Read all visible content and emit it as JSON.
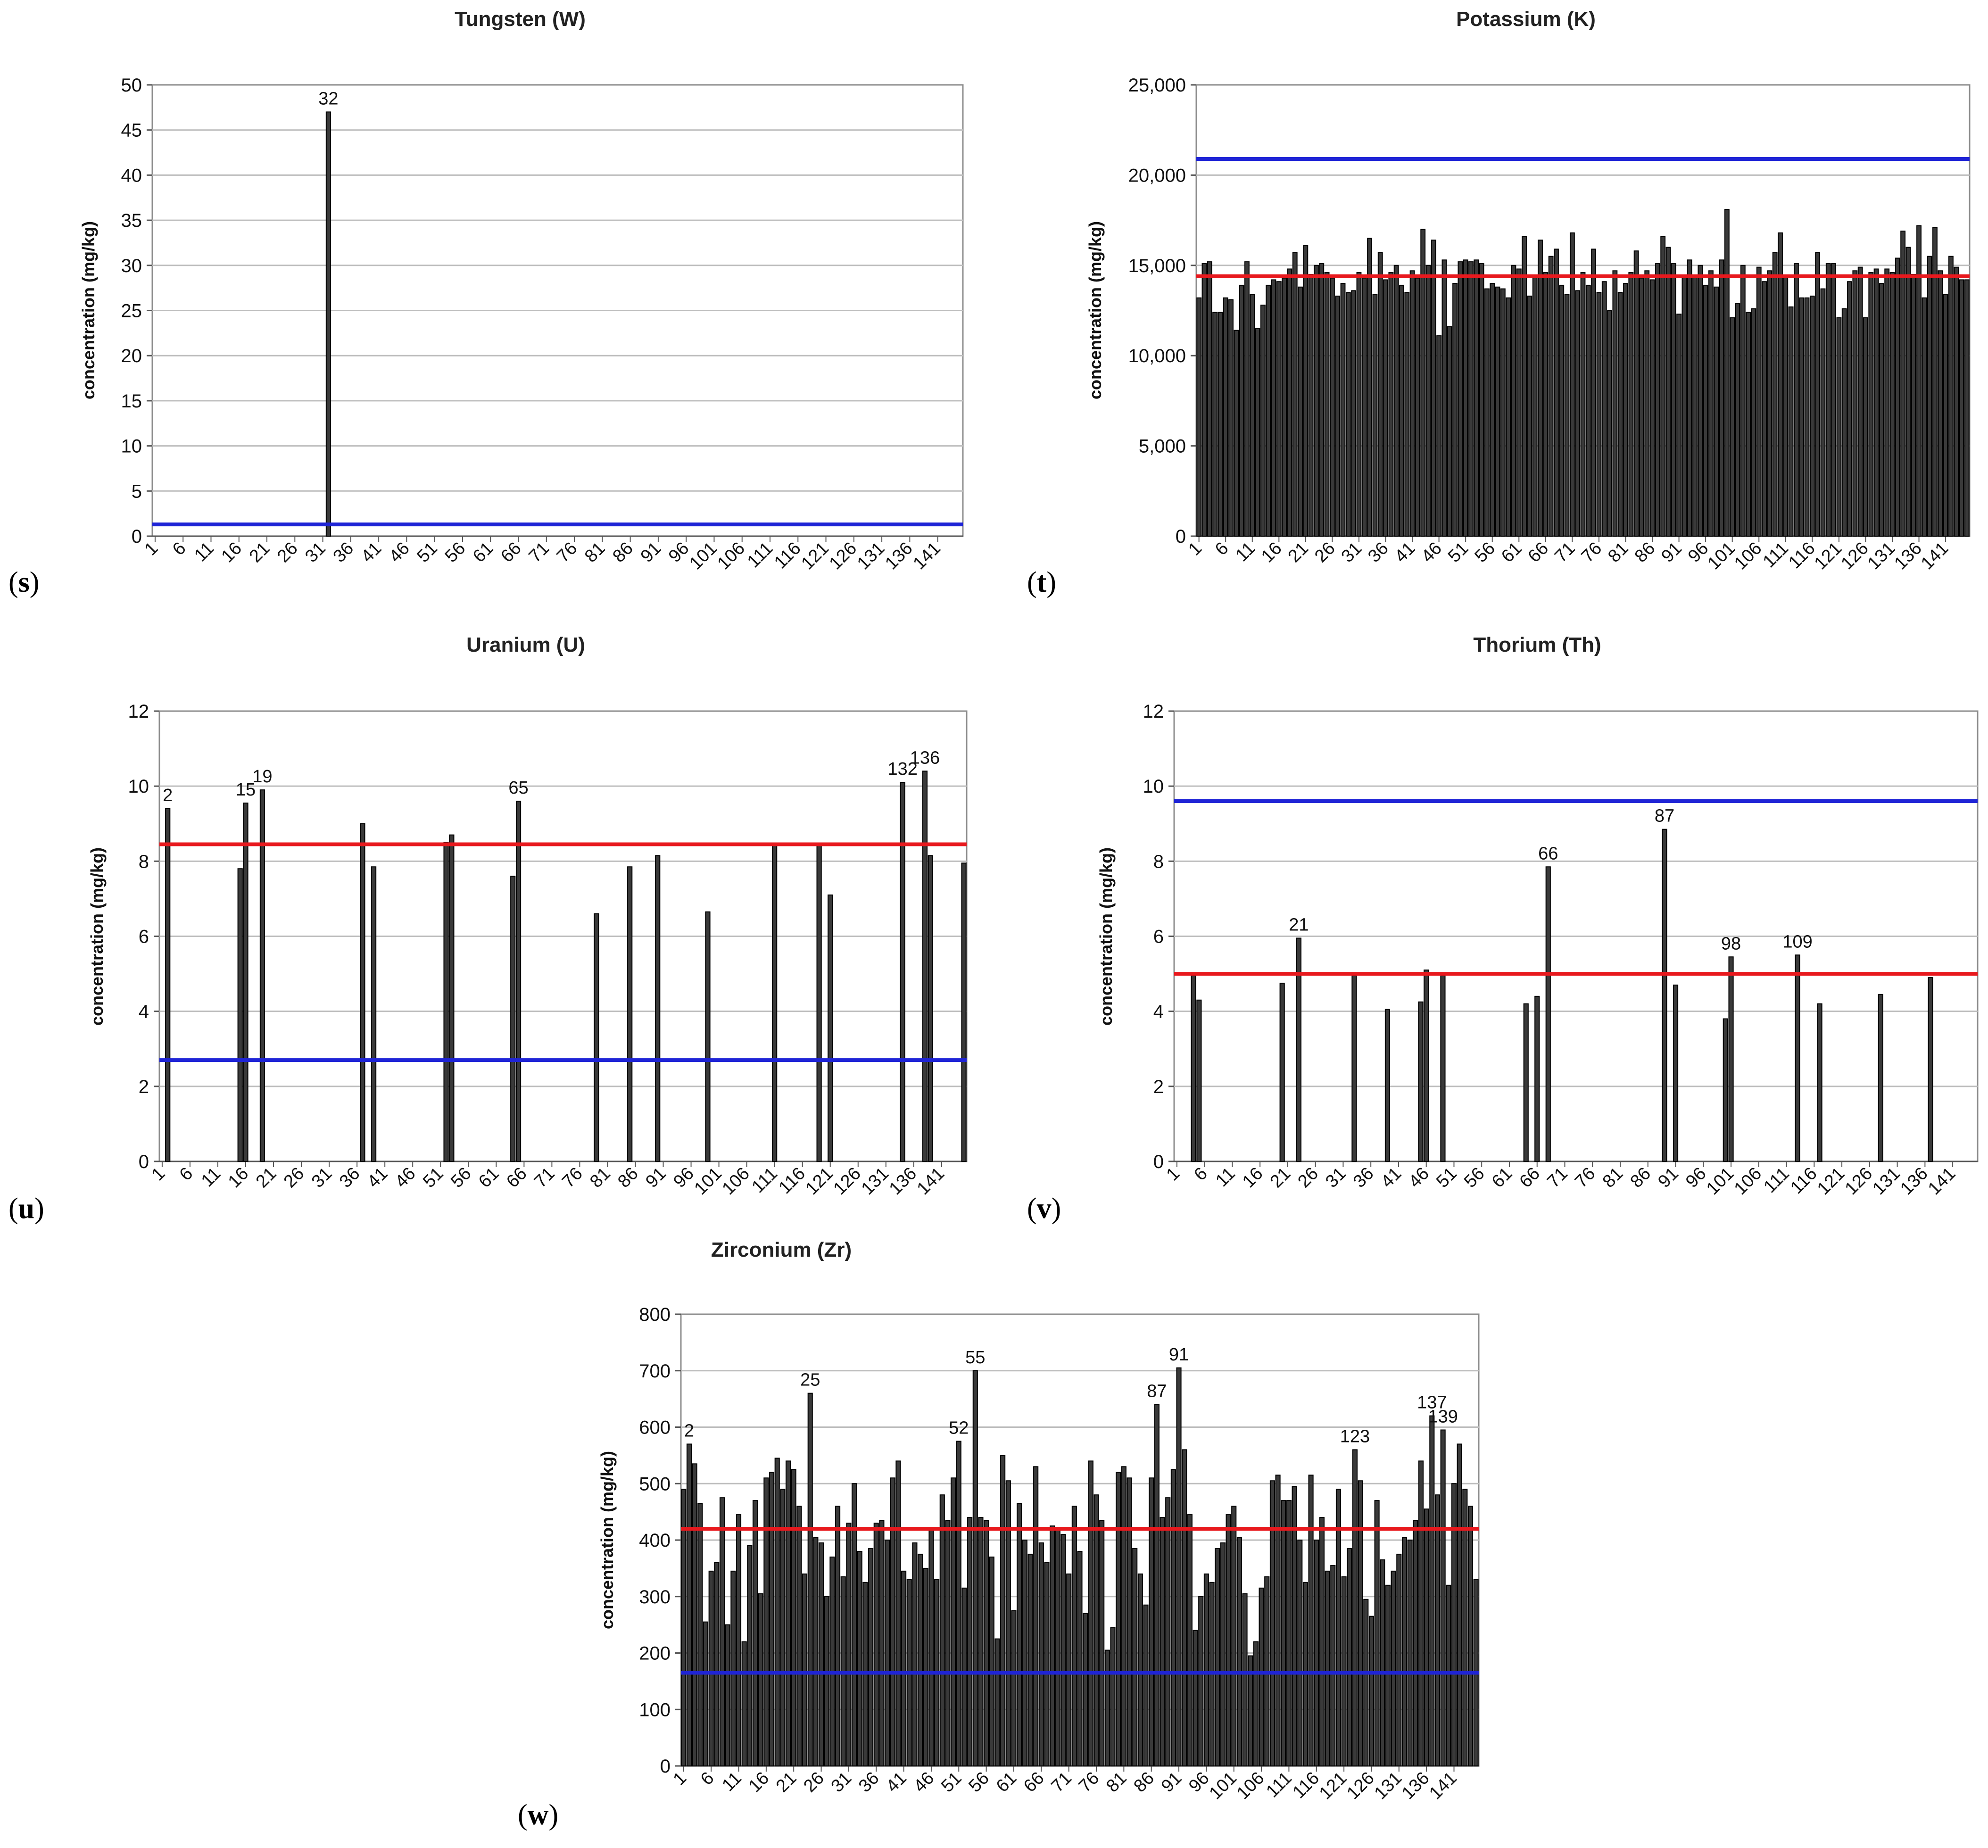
{
  "colors": {
    "bar_fill": "#3a3a3a",
    "bar_stroke": "#000000",
    "grid": "#bdbdbd",
    "red_line": "#e8191e",
    "blue_line": "#1f24d6"
  },
  "chart_data": [
    {
      "id": "s",
      "type": "bar",
      "title": "Tungsten (W)",
      "panel_label": "s",
      "ylabel": "concentration (mg/kg)",
      "ylim": [
        0,
        50
      ],
      "yticks": [
        0,
        5,
        10,
        15,
        20,
        25,
        30,
        35,
        40,
        45,
        50
      ],
      "ytick_labels": [
        "0",
        "5",
        "10",
        "15",
        "20",
        "25",
        "30",
        "35",
        "40",
        "45",
        "50"
      ],
      "n_samples": 145,
      "xtick_labels": [
        "1",
        "6",
        "11",
        "16",
        "21",
        "26",
        "31",
        "36",
        "41",
        "46",
        "51",
        "56",
        "61",
        "66",
        "71",
        "76",
        "81",
        "86",
        "91",
        "96",
        "101",
        "106",
        "111",
        "116",
        "121",
        "126",
        "131",
        "136",
        "141"
      ],
      "values": {
        "32": 47
      },
      "reference_lines": [
        {
          "color": "blue",
          "value": 1.3
        }
      ],
      "annotations": [
        {
          "label": "32",
          "sample": 32
        }
      ]
    },
    {
      "id": "t",
      "type": "bar",
      "title": "Potassium (K)",
      "panel_label": "t",
      "ylabel": "concentration (mg/kg)",
      "ylim": [
        0,
        25000
      ],
      "yticks": [
        0,
        5000,
        10000,
        15000,
        20000,
        25000
      ],
      "ytick_labels": [
        "0",
        "5,000",
        "10,000",
        "15,000",
        "20,000",
        "25,000"
      ],
      "n_samples": 145,
      "xtick_labels": [
        "1",
        "6",
        "11",
        "16",
        "21",
        "26",
        "31",
        "36",
        "41",
        "46",
        "51",
        "56",
        "61",
        "66",
        "71",
        "76",
        "81",
        "86",
        "91",
        "96",
        "101",
        "106",
        "111",
        "116",
        "121",
        "126",
        "131",
        "136",
        "141"
      ],
      "values_list": [
        13200,
        15100,
        15200,
        12400,
        12400,
        13200,
        13100,
        11400,
        13900,
        15200,
        13400,
        11500,
        12800,
        13900,
        14200,
        14100,
        14300,
        14800,
        15700,
        13800,
        16100,
        14500,
        15000,
        15100,
        14600,
        14300,
        13300,
        14000,
        13500,
        13600,
        14600,
        14300,
        16500,
        13400,
        15700,
        14200,
        14600,
        15000,
        13900,
        13500,
        14700,
        14300,
        17000,
        15000,
        16400,
        11100,
        15300,
        11600,
        14000,
        15200,
        15300,
        15200,
        15300,
        15100,
        13700,
        14000,
        13800,
        13700,
        13200,
        15000,
        14800,
        16600,
        13300,
        14400,
        16400,
        14600,
        15500,
        15900,
        13900,
        13400,
        16800,
        13600,
        14600,
        13900,
        15900,
        13500,
        14100,
        12500,
        14700,
        13500,
        14000,
        14600,
        15800,
        14300,
        14700,
        14200,
        15100,
        16600,
        16000,
        15100,
        12300,
        14400,
        15300,
        14400,
        15000,
        13900,
        14700,
        13800,
        15300,
        18100,
        12100,
        12900,
        15000,
        12400,
        12600,
        14900,
        14100,
        14700,
        15700,
        16800,
        14400,
        12700,
        15100,
        13200,
        13200,
        13300,
        15700,
        13700,
        15100,
        15100,
        12100,
        12600,
        14100,
        14700,
        14900,
        12100,
        14600,
        14800,
        14000,
        14800,
        14600,
        15400,
        16900,
        16000,
        14500,
        17200,
        13200,
        15500,
        17100,
        14700,
        13400,
        15500,
        14900,
        14200,
        14200
      ],
      "reference_lines": [
        {
          "color": "red",
          "value": 14400
        },
        {
          "color": "blue",
          "value": 20900
        }
      ],
      "annotations": []
    },
    {
      "id": "u",
      "type": "bar",
      "title": "Uranium (U)",
      "panel_label": "u",
      "ylabel": "concentration (mg/kg)",
      "ylim": [
        0,
        12
      ],
      "yticks": [
        0,
        2,
        4,
        6,
        8,
        10,
        12
      ],
      "ytick_labels": [
        "0",
        "2",
        "4",
        "6",
        "8",
        "10",
        "12"
      ],
      "n_samples": 145,
      "xtick_labels": [
        "1",
        "6",
        "11",
        "16",
        "21",
        "26",
        "31",
        "36",
        "41",
        "46",
        "51",
        "56",
        "61",
        "66",
        "71",
        "76",
        "81",
        "86",
        "91",
        "96",
        "101",
        "106",
        "111",
        "116",
        "121",
        "126",
        "131",
        "136",
        "141"
      ],
      "values": {
        "2": 9.4,
        "15": 7.8,
        "16": 9.55,
        "19": 9.9,
        "37": 9.0,
        "39": 7.85,
        "52": 8.5,
        "53": 8.7,
        "64": 7.6,
        "65": 9.6,
        "79": 6.6,
        "85": 7.85,
        "90": 8.15,
        "99": 6.65,
        "111": 8.45,
        "119": 8.45,
        "121": 7.1,
        "134": 10.1,
        "138": 10.4,
        "139": 8.15,
        "145": 7.95
      },
      "reference_lines": [
        {
          "color": "red",
          "value": 8.45
        },
        {
          "color": "blue",
          "value": 2.7
        }
      ],
      "annotations": [
        {
          "label": "2",
          "sample": 2
        },
        {
          "label": "15",
          "sample": 16
        },
        {
          "label": "19",
          "sample": 19
        },
        {
          "label": "65",
          "sample": 65
        },
        {
          "label": "132",
          "sample": 134
        },
        {
          "label": "136",
          "sample": 138
        }
      ]
    },
    {
      "id": "v",
      "type": "bar",
      "title": "Thorium (Th)",
      "panel_label": "v",
      "ylabel": "concentration (mg/kg)",
      "ylim": [
        0,
        12
      ],
      "yticks": [
        0,
        2,
        4,
        6,
        8,
        10,
        12
      ],
      "ytick_labels": [
        "0",
        "2",
        "4",
        "6",
        "8",
        "10",
        "12"
      ],
      "n_samples": 145,
      "xtick_labels": [
        "1",
        "6",
        "11",
        "16",
        "21",
        "26",
        "31",
        "36",
        "41",
        "46",
        "51",
        "56",
        "61",
        "66",
        "71",
        "76",
        "81",
        "86",
        "91",
        "96",
        "101",
        "106",
        "111",
        "116",
        "121",
        "126",
        "131",
        "136",
        "141"
      ],
      "values": {
        "4": 4.95,
        "5": 4.3,
        "20": 4.75,
        "23": 5.95,
        "33": 4.95,
        "39": 4.05,
        "45": 4.25,
        "46": 5.1,
        "49": 4.95,
        "64": 4.2,
        "66": 4.4,
        "68": 7.85,
        "89": 8.85,
        "91": 4.7,
        "100": 3.8,
        "101": 5.45,
        "113": 5.5,
        "117": 4.2,
        "128": 4.45,
        "137": 4.9
      },
      "reference_lines": [
        {
          "color": "red",
          "value": 5.0
        },
        {
          "color": "blue",
          "value": 9.6
        }
      ],
      "annotations": [
        {
          "label": "21",
          "sample": 23
        },
        {
          "label": "66",
          "sample": 68
        },
        {
          "label": "87",
          "sample": 89
        },
        {
          "label": "98",
          "sample": 101
        },
        {
          "label": "109",
          "sample": 113
        }
      ]
    },
    {
      "id": "w",
      "type": "bar",
      "title": "Zirconium (Zr)",
      "panel_label": "w",
      "ylabel": "concentration (mg/kg)",
      "ylim": [
        0,
        800
      ],
      "yticks": [
        0,
        100,
        200,
        300,
        400,
        500,
        600,
        700,
        800
      ],
      "ytick_labels": [
        "0",
        "100",
        "200",
        "300",
        "400",
        "500",
        "600",
        "700",
        "800"
      ],
      "n_samples": 145,
      "xtick_labels": [
        "1",
        "6",
        "11",
        "16",
        "21",
        "26",
        "31",
        "36",
        "41",
        "46",
        "51",
        "56",
        "61",
        "66",
        "71",
        "76",
        "81",
        "86",
        "91",
        "96",
        "101",
        "106",
        "111",
        "116",
        "121",
        "126",
        "131",
        "136",
        "141"
      ],
      "values_list": [
        490,
        570,
        535,
        465,
        255,
        345,
        360,
        475,
        250,
        345,
        445,
        220,
        390,
        470,
        305,
        510,
        520,
        545,
        490,
        540,
        525,
        460,
        340,
        660,
        405,
        395,
        300,
        370,
        460,
        335,
        430,
        500,
        380,
        325,
        385,
        430,
        435,
        400,
        510,
        540,
        345,
        330,
        395,
        375,
        350,
        420,
        330,
        480,
        435,
        510,
        575,
        315,
        440,
        700,
        440,
        435,
        370,
        225,
        550,
        505,
        275,
        465,
        400,
        375,
        530,
        395,
        360,
        425,
        420,
        410,
        340,
        460,
        380,
        270,
        540,
        480,
        435,
        205,
        245,
        520,
        530,
        510,
        385,
        340,
        285,
        510,
        640,
        440,
        475,
        525,
        705,
        560,
        445,
        240,
        300,
        340,
        325,
        385,
        395,
        445,
        460,
        405,
        305,
        195,
        220,
        315,
        335,
        505,
        515,
        470,
        470,
        495,
        400,
        325,
        515,
        400,
        440,
        345,
        355,
        490,
        335,
        385,
        560,
        505,
        295,
        265,
        470,
        365,
        320,
        345,
        375,
        405,
        400,
        435,
        540,
        455,
        620,
        480,
        595,
        320,
        500,
        570,
        490,
        460,
        330
      ],
      "reference_lines": [
        {
          "color": "red",
          "value": 420
        },
        {
          "color": "blue",
          "value": 165
        }
      ],
      "annotations": [
        {
          "label": "2",
          "sample": 2
        },
        {
          "label": "25",
          "sample": 24
        },
        {
          "label": "52",
          "sample": 51
        },
        {
          "label": "55",
          "sample": 54
        },
        {
          "label": "87",
          "sample": 87
        },
        {
          "label": "91",
          "sample": 91
        },
        {
          "label": "123",
          "sample": 123
        },
        {
          "label": "137",
          "sample": 137
        },
        {
          "label": "139",
          "sample": 139
        }
      ]
    }
  ]
}
